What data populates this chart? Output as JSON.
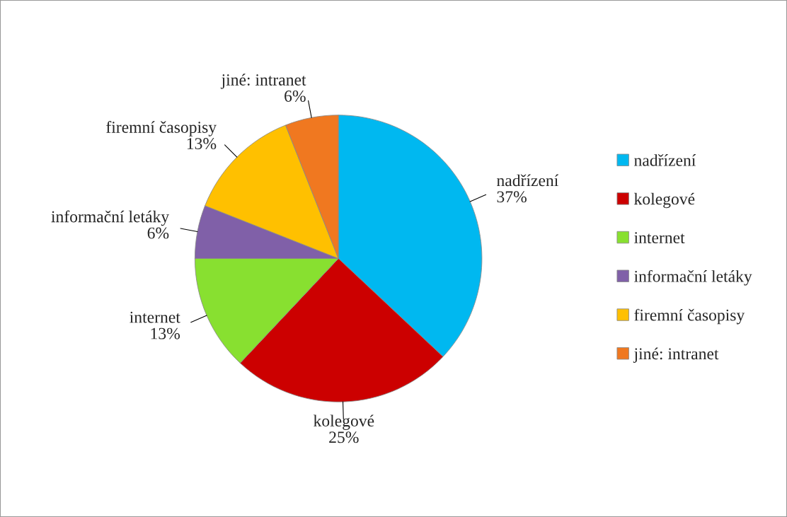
{
  "chart_data": {
    "type": "pie",
    "categories": [
      "nadřízení",
      "kolegové",
      "internet",
      "informační letáky",
      "firemní časopisy",
      "jiné: intranet"
    ],
    "values": [
      37,
      25,
      13,
      6,
      13,
      6
    ],
    "value_labels": [
      "37%",
      "25%",
      "13%",
      "6%",
      "13%",
      "6%"
    ],
    "colors": [
      "#00b8f0",
      "#cc0000",
      "#88e030",
      "#8060a8",
      "#ffc000",
      "#f07820"
    ],
    "legend": "right"
  }
}
